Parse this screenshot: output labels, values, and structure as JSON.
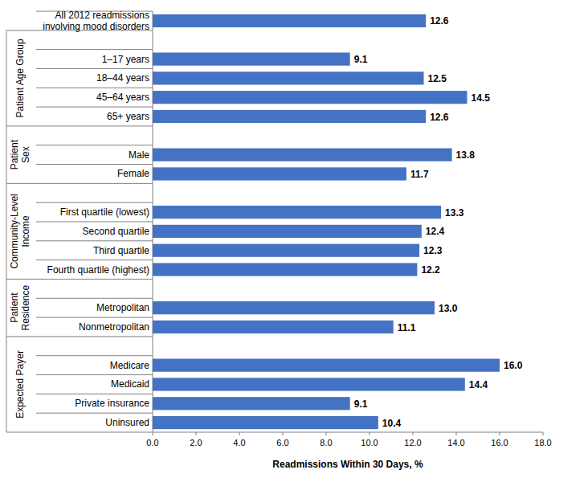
{
  "chart_data": {
    "type": "bar",
    "orientation": "horizontal",
    "xlabel": "Readmissions Within 30 Days, %",
    "xlim": [
      0,
      18
    ],
    "xticks": [
      {
        "value": 0,
        "label": "0.0"
      },
      {
        "value": 2,
        "label": "2.0"
      },
      {
        "value": 4,
        "label": "4.0"
      },
      {
        "value": 6,
        "label": "6.0"
      },
      {
        "value": 8,
        "label": "8.0"
      },
      {
        "value": 10,
        "label": "10.0"
      },
      {
        "value": 12,
        "label": "12.0"
      },
      {
        "value": 14,
        "label": "14.0"
      },
      {
        "value": 16,
        "label": "16.0"
      },
      {
        "value": 18,
        "label": "18.0"
      }
    ],
    "color": "#4472C4",
    "grid": false,
    "data_labels": true,
    "groups": [
      {
        "label": null,
        "categories": [
          "All 2012 readmissions involving mood disorders"
        ],
        "values": [
          12.6
        ],
        "value_labels": [
          "12.6"
        ]
      },
      {
        "label": "Patient Age Group",
        "categories": [
          "1–17 years",
          "18–44 years",
          "45–64 years",
          "65+ years"
        ],
        "values": [
          9.1,
          12.5,
          14.5,
          12.6
        ],
        "value_labels": [
          "9.1",
          "12.5",
          "14.5",
          "12.6"
        ]
      },
      {
        "label": "Patient Sex",
        "categories": [
          "Male",
          "Female"
        ],
        "values": [
          13.8,
          11.7
        ],
        "value_labels": [
          "13.8",
          "11.7"
        ]
      },
      {
        "label": "Community-Level Income",
        "categories": [
          "First quartile (lowest)",
          "Second quartile",
          "Third quartile",
          "Fourth quartile (highest)"
        ],
        "values": [
          13.3,
          12.4,
          12.3,
          12.2
        ],
        "value_labels": [
          "13.3",
          "12.4",
          "12.3",
          "12.2"
        ]
      },
      {
        "label": "Patient Residence",
        "categories": [
          "Metropolitan",
          "Nonmetropolitan"
        ],
        "values": [
          13.0,
          11.1
        ],
        "value_labels": [
          "13.0",
          "11.1"
        ]
      },
      {
        "label": "Expected Payer",
        "categories": [
          "Medicare",
          "Medicaid",
          "Private insurance",
          "Uninsured"
        ],
        "values": [
          16.0,
          14.4,
          9.1,
          10.4
        ],
        "value_labels": [
          "16.0",
          "14.4",
          "9.1",
          "10.4"
        ]
      }
    ]
  }
}
